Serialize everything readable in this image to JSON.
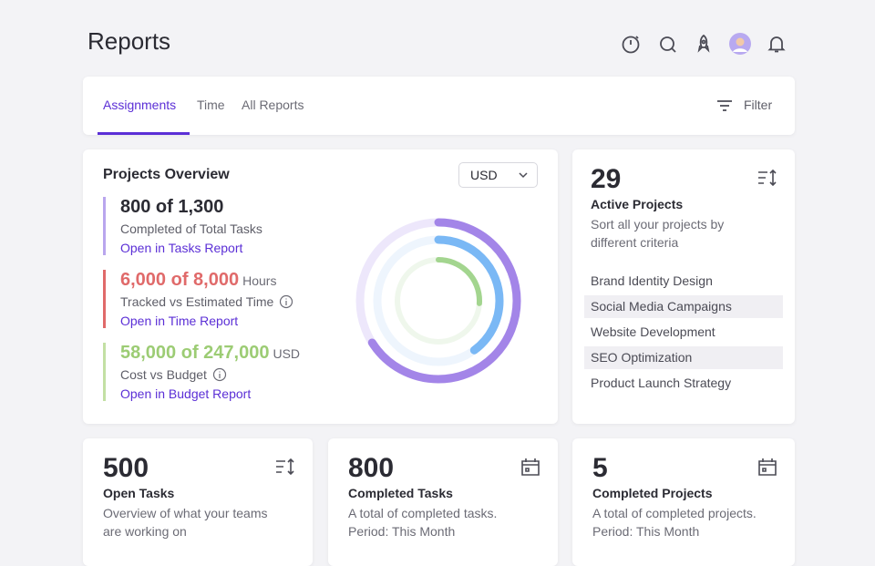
{
  "header": {
    "title": "Reports"
  },
  "tabs": {
    "items": [
      "Assignments",
      "Time",
      "All Reports"
    ],
    "filter": "Filter"
  },
  "overview": {
    "title": "Projects Overview",
    "currency": "USD",
    "metrics": [
      {
        "value": "800 of 1,300",
        "label": "Completed of Total Tasks",
        "link": "Open in Tasks Report",
        "accent": "#b9a6ee",
        "value_color": "#2b2b33"
      },
      {
        "value": "6,000 of 8,000",
        "unit": "Hours",
        "label": "Tracked vs Estimated Time",
        "link": "Open in Time Report",
        "accent": "#e06a6a",
        "value_color": "#e06a6a"
      },
      {
        "value": "58,000 of 247,000",
        "unit": "USD",
        "label": "Cost vs Budget",
        "link": "Open in Budget Report",
        "accent": "#c3e0a4",
        "value_color": "#9ccc74"
      }
    ],
    "rings": [
      {
        "value": 0.66,
        "color": "#a385e8",
        "track": "#ede7fb"
      },
      {
        "value": 0.4,
        "color": "#7ab8f5",
        "track": "#eef5fd"
      },
      {
        "value": 0.26,
        "color": "#a3d58f",
        "track": "#eff7ec"
      }
    ]
  },
  "active": {
    "count": "29",
    "title": "Active Projects",
    "description": "Sort all your projects by different criteria",
    "projects": [
      "Brand Identity Design",
      "Social Media Campaigns",
      "Website Development",
      "SEO Optimization",
      "Product Launch Strategy"
    ]
  },
  "stats": [
    {
      "count": "500",
      "title": "Open Tasks",
      "description": "Overview of what your teams are working on"
    },
    {
      "count": "800",
      "title": "Completed Tasks",
      "description": "A total of completed tasks.",
      "period": "Period: This Month"
    },
    {
      "count": "5",
      "title": "Completed Projects",
      "description": "A total of completed projects.",
      "period": "Period: This Month"
    }
  ]
}
